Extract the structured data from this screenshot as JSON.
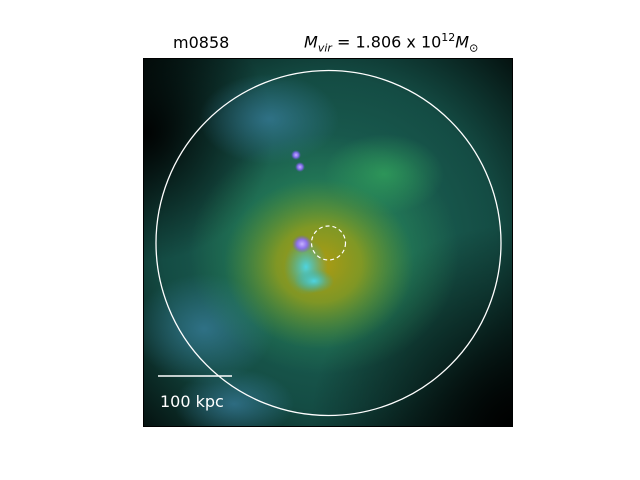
{
  "figure": {
    "halo_id": "m0858",
    "mass_prefix": "= 1.806 x 10",
    "mass_exponent": "12",
    "mass_symbol_main": "M",
    "mass_symbol_sub": "vir",
    "mass_unit_main": "M",
    "mass_unit_sub": "⊙",
    "scale_bar_label": "100 kpc"
  },
  "colors": {
    "background_dark": "#000000",
    "gas_teal": "#1f6f5c",
    "gas_green": "#2f9a5a",
    "gas_yellow": "#a89a12",
    "stars_cyan": "#3fc7d8",
    "stars_violet": "#9a7cff",
    "virial_circle": "#ffffff",
    "inner_circle": "#ffffff"
  }
}
